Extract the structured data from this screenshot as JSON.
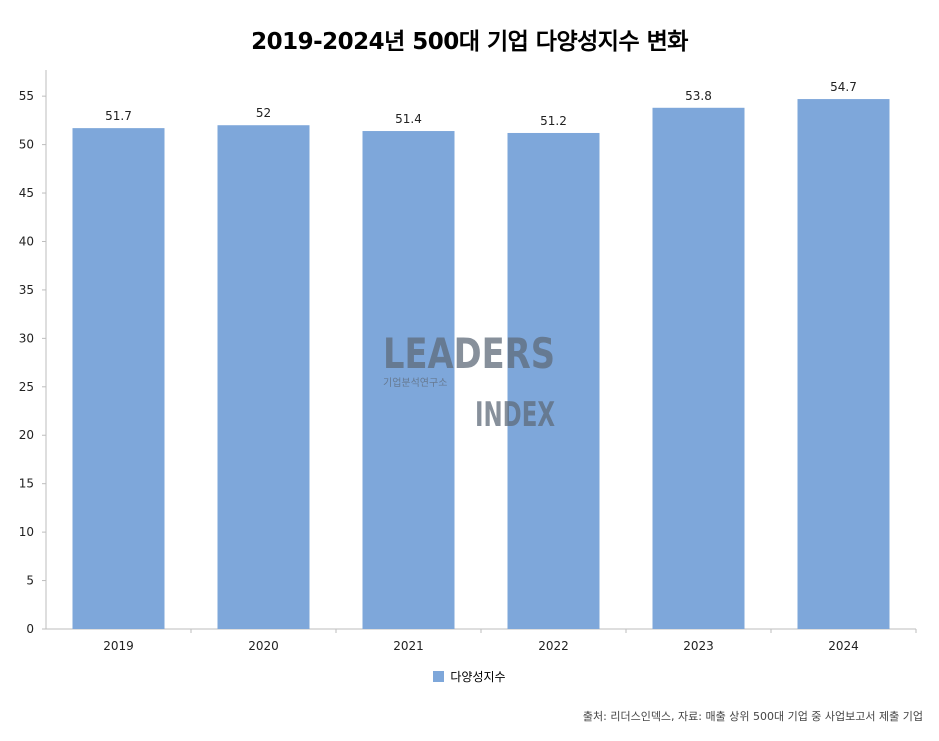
{
  "colors": {
    "bar": "#7ea7da",
    "axis": "#bdbdbd",
    "watermark": "#5f6b7a"
  },
  "watermark": {
    "word1": "LEADERS",
    "word2": "INDEX",
    "subtitle": "기업분석연구소"
  },
  "legend": {
    "label": "다양성지수"
  },
  "source": "출처: 리더스인덱스, 자료: 매출 상위 500대 기업 중 사업보고서 제출 기업",
  "chart_data": {
    "type": "bar",
    "title": "2019-2024년 500대 기업 다양성지수 변화",
    "categories": [
      "2019",
      "2020",
      "2021",
      "2022",
      "2023",
      "2024"
    ],
    "series": [
      {
        "name": "다양성지수",
        "values": [
          51.7,
          52,
          51.4,
          51.2,
          53.8,
          54.7
        ]
      }
    ],
    "data_labels": [
      "51.7",
      "52",
      "51.4",
      "51.2",
      "53.8",
      "54.7"
    ],
    "ylim": [
      0,
      57.7
    ],
    "yticks": [
      0,
      5,
      10,
      15,
      20,
      25,
      30,
      35,
      40,
      45,
      50,
      55
    ],
    "xlabel": "",
    "ylabel": "",
    "grid": false,
    "legend_position": "bottom"
  }
}
